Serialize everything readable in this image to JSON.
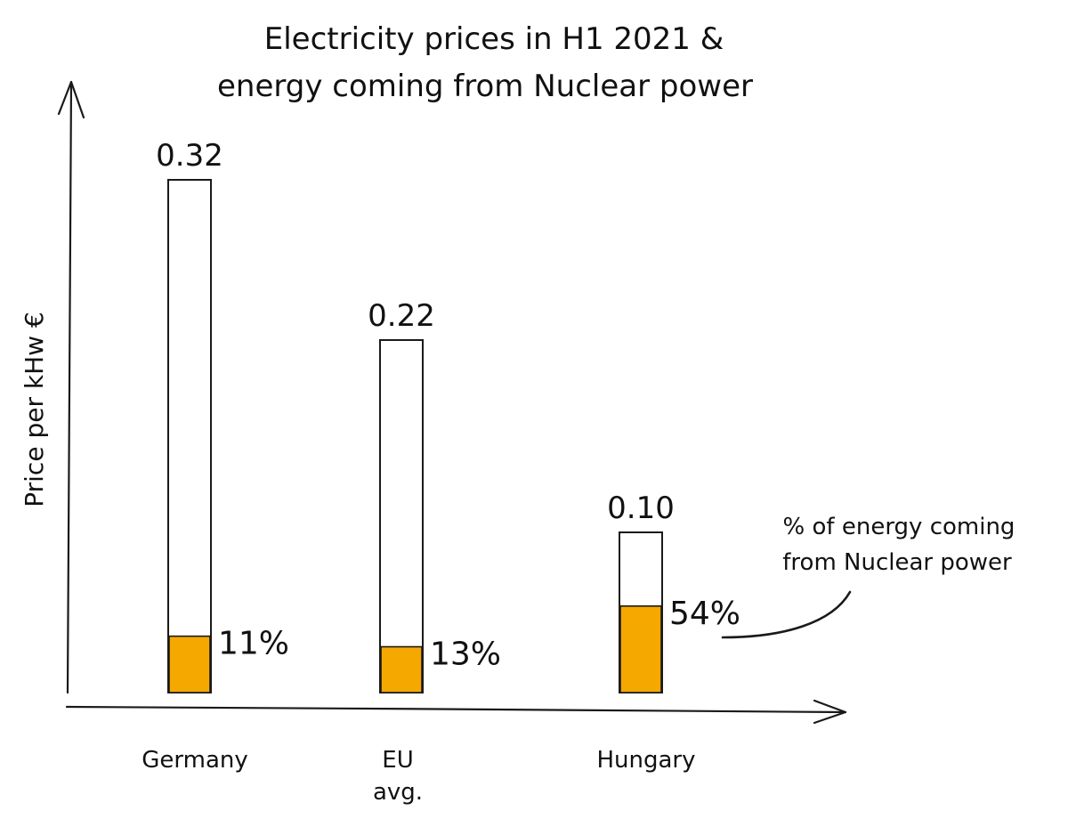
{
  "chart_data": {
    "type": "bar",
    "title_lines": [
      "Electricity prices in H1 2021 &",
      "energy coming from Nuclear power"
    ],
    "ylabel": "Price per kHw €",
    "xlabel": "",
    "categories": [
      {
        "lines": [
          "Germany"
        ]
      },
      {
        "lines": [
          "EU",
          "avg."
        ]
      },
      {
        "lines": [
          "Hungary"
        ]
      }
    ],
    "price_labels": [
      "0.32",
      "0.22",
      "0.10"
    ],
    "prices": [
      0.32,
      0.22,
      0.1
    ],
    "nuclear_share_labels": [
      "11%",
      "13%",
      "54%"
    ],
    "nuclear_share": [
      0.11,
      0.13,
      0.54
    ],
    "ylim": [
      0,
      0.35
    ],
    "annotation_lines": [
      "% of energy coming",
      "from Nuclear power"
    ],
    "colors": {
      "fill": "#F5A800",
      "outline": "#1a1a1a",
      "background": "#ffffff"
    }
  }
}
